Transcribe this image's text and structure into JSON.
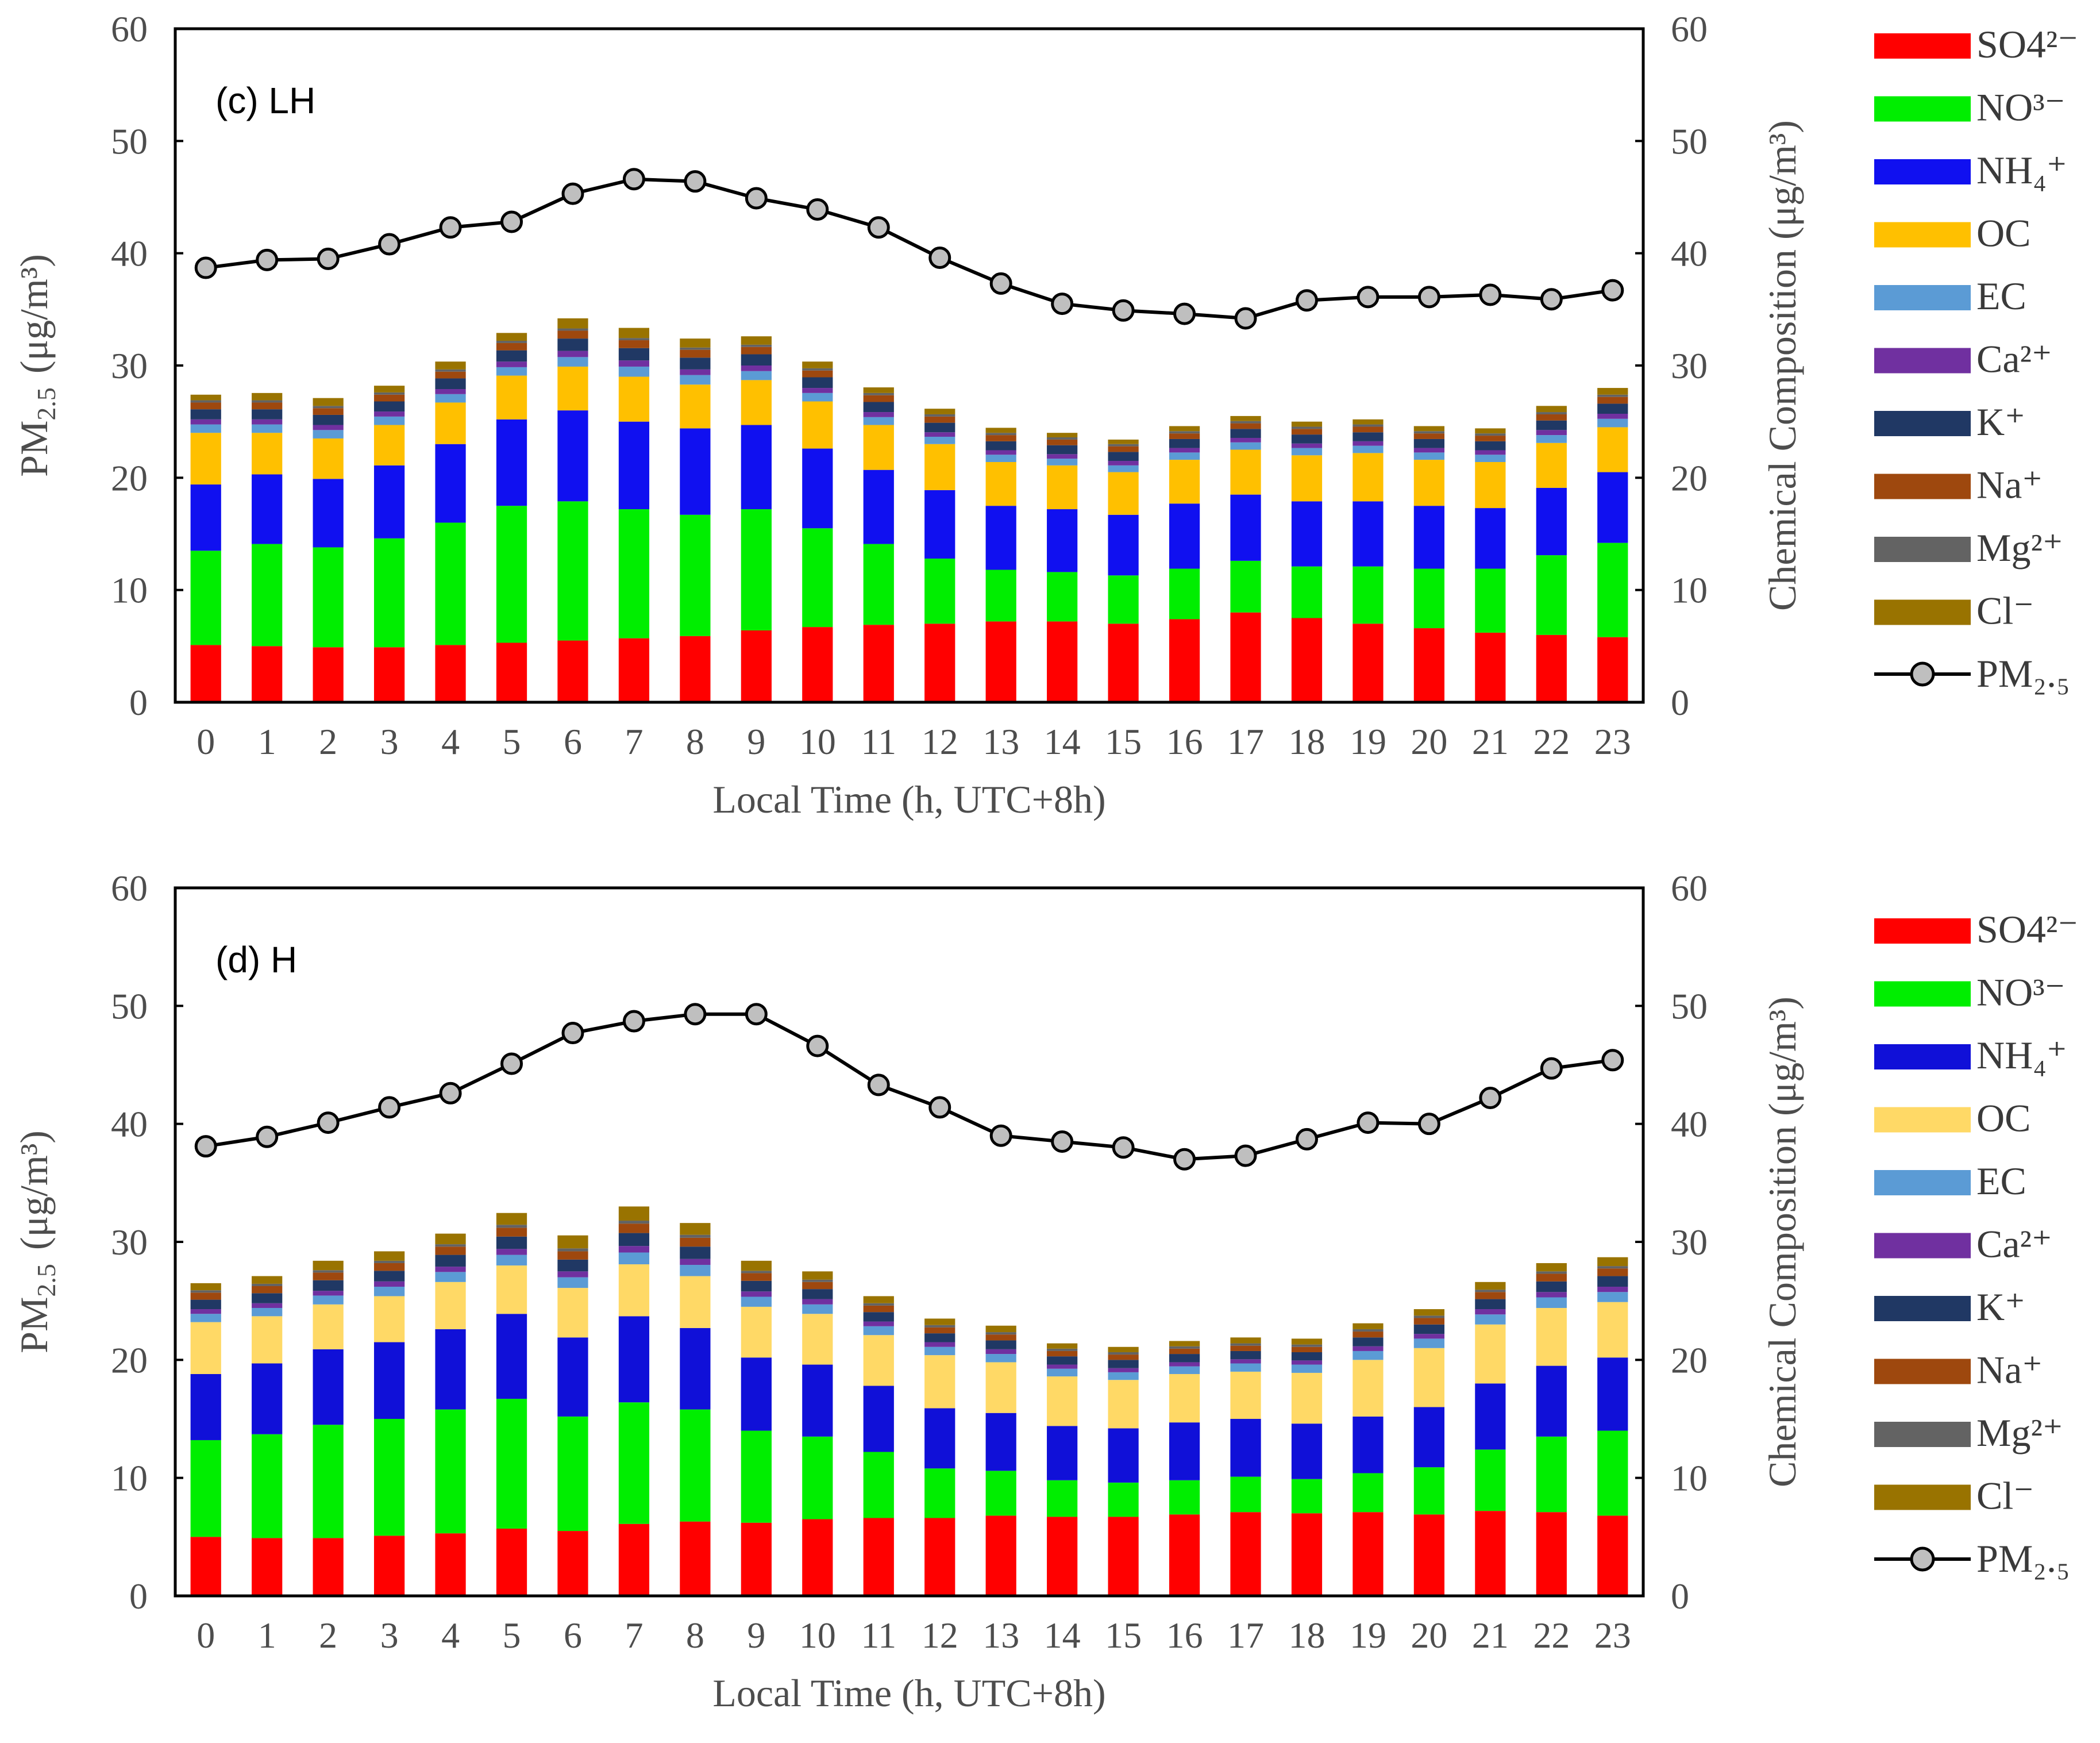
{
  "chart_data": [
    {
      "type": "bar",
      "stacked": true,
      "panel_label": "(c) LH",
      "xlabel": "Local Time (h, UTC+8h)",
      "ylabel_main": "PM",
      "ylabel_sub": "2.5",
      "ylabel_unit": "(μg/m³)",
      "ylabel_right": "Chemical Composition (μg/m³)",
      "ylim": [
        0,
        60
      ],
      "yticks": [
        0,
        10,
        20,
        30,
        40,
        50,
        60
      ],
      "categories": [
        "0",
        "1",
        "2",
        "3",
        "4",
        "5",
        "6",
        "7",
        "8",
        "9",
        "10",
        "11",
        "12",
        "13",
        "14",
        "15",
        "16",
        "17",
        "18",
        "19",
        "20",
        "21",
        "22",
        "23"
      ],
      "series": [
        {
          "name": "SO4²⁻",
          "color": "#ff0000",
          "values": [
            5.1,
            5.0,
            4.9,
            4.9,
            5.1,
            5.3,
            5.5,
            5.7,
            5.9,
            6.4,
            6.7,
            6.9,
            7.0,
            7.2,
            7.2,
            7.0,
            7.4,
            8.0,
            7.5,
            7.0,
            6.6,
            6.2,
            6.0,
            5.8
          ]
        },
        {
          "name": "NO³⁻",
          "color": "#00ee00",
          "values": [
            8.4,
            9.1,
            8.9,
            9.7,
            10.9,
            12.2,
            12.4,
            11.5,
            10.8,
            10.8,
            8.8,
            7.2,
            5.8,
            4.6,
            4.4,
            4.3,
            4.5,
            4.6,
            4.6,
            5.1,
            5.3,
            5.7,
            7.1,
            8.4
          ]
        },
        {
          "name": "NH₄⁺",
          "color": "#1010f0",
          "values": [
            5.9,
            6.2,
            6.1,
            6.5,
            7.0,
            7.7,
            8.1,
            7.8,
            7.7,
            7.5,
            7.1,
            6.6,
            6.1,
            5.7,
            5.6,
            5.4,
            5.8,
            5.9,
            5.8,
            5.8,
            5.6,
            5.4,
            6.0,
            6.3
          ]
        },
        {
          "name": "OC",
          "color": "#ffc000",
          "values": [
            4.6,
            3.7,
            3.6,
            3.6,
            3.7,
            3.9,
            3.9,
            4.0,
            3.9,
            4.0,
            4.2,
            4.0,
            4.1,
            3.9,
            3.9,
            3.8,
            3.9,
            4.0,
            4.1,
            4.3,
            4.1,
            4.1,
            4.0,
            4.0
          ]
        },
        {
          "name": "EC",
          "color": "#5b9bd5",
          "values": [
            0.75,
            0.75,
            0.75,
            0.75,
            0.75,
            0.75,
            0.85,
            0.9,
            0.85,
            0.8,
            0.75,
            0.7,
            0.65,
            0.65,
            0.6,
            0.6,
            0.65,
            0.65,
            0.65,
            0.65,
            0.65,
            0.65,
            0.7,
            0.75
          ]
        },
        {
          "name": "Ca²⁺",
          "color": "#7030a0",
          "values": [
            0.45,
            0.45,
            0.45,
            0.45,
            0.45,
            0.5,
            0.55,
            0.55,
            0.5,
            0.5,
            0.45,
            0.45,
            0.4,
            0.4,
            0.4,
            0.4,
            0.4,
            0.4,
            0.4,
            0.4,
            0.4,
            0.4,
            0.45,
            0.45
          ]
        },
        {
          "name": "K⁺",
          "color": "#203864",
          "values": [
            0.9,
            0.9,
            0.9,
            0.9,
            0.95,
            1.0,
            1.1,
            1.1,
            1.05,
            1.0,
            0.95,
            0.9,
            0.85,
            0.8,
            0.8,
            0.8,
            0.8,
            0.8,
            0.8,
            0.8,
            0.8,
            0.8,
            0.85,
            0.9
          ]
        },
        {
          "name": "Na⁺",
          "color": "#9e480e",
          "values": [
            0.6,
            0.6,
            0.6,
            0.6,
            0.6,
            0.65,
            0.7,
            0.7,
            0.7,
            0.65,
            0.6,
            0.6,
            0.55,
            0.55,
            0.5,
            0.5,
            0.5,
            0.5,
            0.5,
            0.5,
            0.5,
            0.5,
            0.55,
            0.6
          ]
        },
        {
          "name": "Mg²⁺",
          "color": "#636363",
          "values": [
            0.2,
            0.2,
            0.2,
            0.2,
            0.2,
            0.2,
            0.2,
            0.2,
            0.2,
            0.2,
            0.2,
            0.2,
            0.2,
            0.2,
            0.2,
            0.2,
            0.2,
            0.2,
            0.2,
            0.2,
            0.2,
            0.2,
            0.2,
            0.2
          ]
        },
        {
          "name": "Cl⁻",
          "color": "#997300",
          "values": [
            0.5,
            0.65,
            0.7,
            0.6,
            0.7,
            0.7,
            0.9,
            0.9,
            0.8,
            0.75,
            0.6,
            0.5,
            0.5,
            0.45,
            0.4,
            0.4,
            0.45,
            0.45,
            0.45,
            0.45,
            0.45,
            0.45,
            0.55,
            0.6
          ]
        }
      ],
      "line": {
        "name": "PM₂.₅",
        "values": [
          38.7,
          39.4,
          39.5,
          40.8,
          42.3,
          42.8,
          45.3,
          46.6,
          46.4,
          44.9,
          43.9,
          42.3,
          39.6,
          37.3,
          35.5,
          34.9,
          34.6,
          34.2,
          35.8,
          36.1,
          36.1,
          36.3,
          35.9,
          36.7
        ]
      }
    },
    {
      "type": "bar",
      "stacked": true,
      "panel_label": "(d) H",
      "xlabel": "Local Time (h, UTC+8h)",
      "ylabel_main": "PM",
      "ylabel_sub": "2.5",
      "ylabel_unit": "(μg/m³)",
      "ylabel_right": "Chemical Composition (μg/m³)",
      "ylim": [
        0,
        60
      ],
      "yticks": [
        0,
        10,
        20,
        30,
        40,
        50,
        60
      ],
      "categories": [
        "0",
        "1",
        "2",
        "3",
        "4",
        "5",
        "6",
        "7",
        "8",
        "9",
        "10",
        "11",
        "12",
        "13",
        "14",
        "15",
        "16",
        "17",
        "18",
        "19",
        "20",
        "21",
        "22",
        "23"
      ],
      "series": [
        {
          "name": "SO4²⁻",
          "color": "#ff0000",
          "values": [
            5.0,
            4.9,
            4.9,
            5.1,
            5.3,
            5.7,
            5.5,
            6.1,
            6.3,
            6.2,
            6.5,
            6.6,
            6.6,
            6.8,
            6.7,
            6.7,
            6.9,
            7.1,
            7.0,
            7.1,
            6.9,
            7.2,
            7.1,
            6.8
          ]
        },
        {
          "name": "NO³⁻",
          "color": "#00ee00",
          "values": [
            8.2,
            8.8,
            9.6,
            9.9,
            10.5,
            11.0,
            9.7,
            10.3,
            9.5,
            7.8,
            7.0,
            5.6,
            4.2,
            3.8,
            3.1,
            2.9,
            2.9,
            3.0,
            2.9,
            3.3,
            4.0,
            5.2,
            6.4,
            7.2
          ]
        },
        {
          "name": "NH₄⁺",
          "color": "#1010d8",
          "values": [
            5.6,
            6.0,
            6.4,
            6.5,
            6.8,
            7.2,
            6.7,
            7.3,
            6.9,
            6.2,
            6.1,
            5.6,
            5.1,
            4.9,
            4.6,
            4.6,
            4.9,
            4.9,
            4.7,
            4.8,
            5.1,
            5.6,
            6.0,
            6.2
          ]
        },
        {
          "name": "OC",
          "color": "#ffd966",
          "values": [
            4.4,
            4.0,
            3.8,
            3.9,
            4.0,
            4.1,
            4.2,
            4.4,
            4.4,
            4.3,
            4.3,
            4.3,
            4.5,
            4.3,
            4.2,
            4.1,
            4.1,
            4.0,
            4.3,
            4.8,
            5.0,
            5.0,
            4.9,
            4.7
          ]
        },
        {
          "name": "EC",
          "color": "#5b9bd5",
          "values": [
            0.7,
            0.7,
            0.75,
            0.8,
            0.85,
            0.9,
            0.9,
            1.0,
            0.95,
            0.85,
            0.8,
            0.75,
            0.7,
            0.7,
            0.65,
            0.65,
            0.65,
            0.7,
            0.7,
            0.75,
            0.8,
            0.85,
            0.9,
            0.85
          ]
        },
        {
          "name": "Ca²⁺",
          "color": "#7030a0",
          "values": [
            0.4,
            0.4,
            0.4,
            0.45,
            0.45,
            0.5,
            0.5,
            0.55,
            0.5,
            0.45,
            0.45,
            0.4,
            0.4,
            0.4,
            0.35,
            0.35,
            0.35,
            0.35,
            0.35,
            0.4,
            0.4,
            0.45,
            0.45,
            0.45
          ]
        },
        {
          "name": "K⁺",
          "color": "#203864",
          "values": [
            0.8,
            0.85,
            0.9,
            0.9,
            1.0,
            1.05,
            1.0,
            1.1,
            1.05,
            0.9,
            0.85,
            0.8,
            0.75,
            0.75,
            0.7,
            0.7,
            0.7,
            0.7,
            0.7,
            0.75,
            0.8,
            0.85,
            0.9,
            0.9
          ]
        },
        {
          "name": "Na⁺",
          "color": "#9e480e",
          "values": [
            0.6,
            0.6,
            0.65,
            0.65,
            0.7,
            0.75,
            0.7,
            0.8,
            0.75,
            0.65,
            0.6,
            0.55,
            0.5,
            0.5,
            0.45,
            0.45,
            0.45,
            0.45,
            0.45,
            0.5,
            0.55,
            0.6,
            0.65,
            0.65
          ]
        },
        {
          "name": "Mg²⁺",
          "color": "#636363",
          "values": [
            0.2,
            0.2,
            0.2,
            0.2,
            0.2,
            0.25,
            0.25,
            0.25,
            0.25,
            0.2,
            0.2,
            0.2,
            0.2,
            0.2,
            0.2,
            0.2,
            0.2,
            0.2,
            0.2,
            0.2,
            0.2,
            0.2,
            0.2,
            0.2
          ]
        },
        {
          "name": "Cl⁻",
          "color": "#997300",
          "values": [
            0.6,
            0.65,
            0.8,
            0.8,
            0.9,
            1.0,
            1.1,
            1.2,
            1.0,
            0.85,
            0.7,
            0.6,
            0.55,
            0.55,
            0.45,
            0.45,
            0.45,
            0.5,
            0.5,
            0.5,
            0.55,
            0.65,
            0.7,
            0.75
          ]
        }
      ],
      "line": {
        "name": "PM₂.₅",
        "values": [
          38.1,
          38.9,
          40.1,
          41.4,
          42.6,
          45.1,
          47.7,
          48.7,
          49.3,
          49.3,
          46.6,
          43.3,
          41.4,
          39.0,
          38.5,
          38.0,
          37.0,
          37.3,
          38.7,
          40.1,
          40.0,
          42.2,
          44.7,
          45.4
        ]
      }
    }
  ]
}
